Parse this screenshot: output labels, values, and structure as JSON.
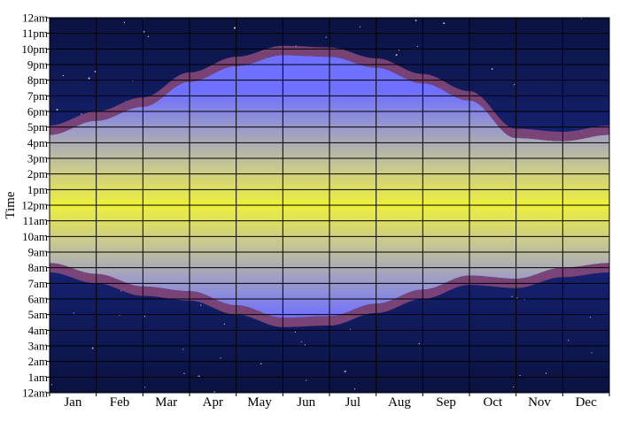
{
  "chart_data": {
    "type": "area",
    "ylabel": "Time",
    "xlabel": "",
    "title": "",
    "months": [
      "Jan",
      "Feb",
      "Mar",
      "Apr",
      "May",
      "Jun",
      "Jul",
      "Aug",
      "Sep",
      "Oct",
      "Nov",
      "Dec"
    ],
    "y_tick_labels": [
      "12am",
      "1am",
      "2am",
      "3am",
      "4am",
      "5am",
      "6am",
      "7am",
      "8am",
      "9am",
      "10am",
      "11am",
      "12pm",
      "1pm",
      "2pm",
      "3pm",
      "4pm",
      "5pm",
      "6pm",
      "7pm",
      "8pm",
      "9pm",
      "10pm",
      "11pm",
      "12am"
    ],
    "ylim": [
      0,
      24
    ],
    "xlim": [
      0,
      12
    ],
    "grid": true,
    "dst_period": [
      2.2,
      9.7
    ],
    "sunrise_hours": [
      8.3,
      7.6,
      6.8,
      6.5,
      5.6,
      4.8,
      4.9,
      5.7,
      6.6,
      7.5,
      7.3,
      8.0,
      8.3
    ],
    "sunset_hours": [
      4.5,
      5.4,
      6.3,
      7.9,
      8.9,
      9.6,
      9.5,
      8.8,
      7.8,
      6.7,
      4.3,
      4.1,
      4.5
    ],
    "twilight_hours": 0.6,
    "colors": {
      "night_edge": "#0a1240",
      "night_mid": "#1b2a8a",
      "day_edge": "#7070ff",
      "noon": "#eef03a",
      "twilight": "#8c4a7a",
      "grid": "#000000"
    }
  }
}
